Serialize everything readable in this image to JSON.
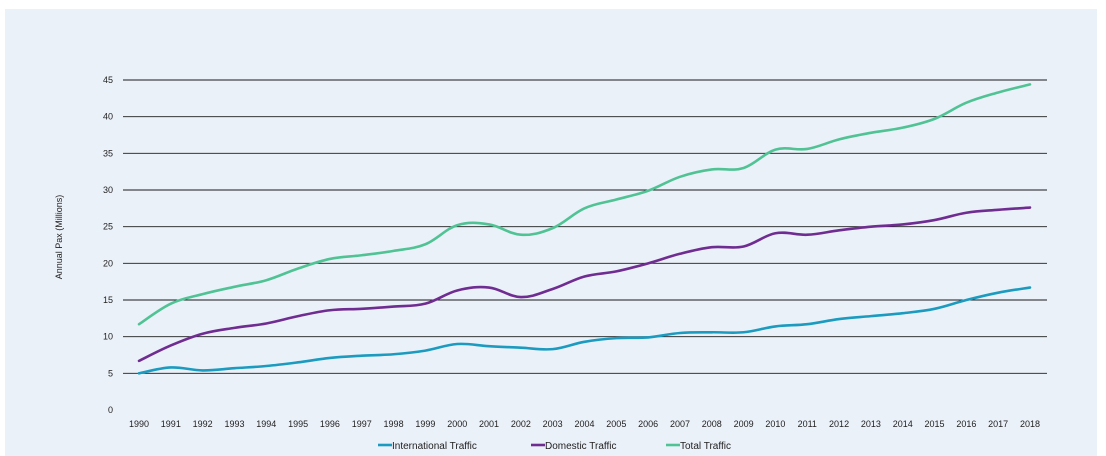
{
  "chart_data": {
    "type": "line",
    "title": "",
    "xlabel": "",
    "ylabel": "Annual Pax (Millions)",
    "ylim": [
      0,
      45
    ],
    "yticks": [
      0,
      5,
      10,
      15,
      20,
      25,
      30,
      35,
      40,
      45
    ],
    "grid": "horizontal",
    "legend_position": "bottom",
    "categories": [
      "1990",
      "1991",
      "1992",
      "1993",
      "1994",
      "1995",
      "1996",
      "1997",
      "1998",
      "1999",
      "2000",
      "2001",
      "2002",
      "2003",
      "2004",
      "2005",
      "2006",
      "2007",
      "2008",
      "2009",
      "2010",
      "2011",
      "2012",
      "2013",
      "2014",
      "2015",
      "2016",
      "2017",
      "2018"
    ],
    "series": [
      {
        "name": "International Traffic",
        "color": "#1b9bbf",
        "values": [
          5.0,
          5.8,
          5.4,
          5.7,
          6.0,
          6.5,
          7.1,
          7.4,
          7.6,
          8.1,
          9.0,
          8.7,
          8.5,
          8.3,
          9.3,
          9.8,
          9.9,
          10.5,
          10.6,
          10.6,
          11.4,
          11.7,
          12.4,
          12.8,
          13.2,
          13.8,
          15.0,
          16.0,
          16.7
        ]
      },
      {
        "name": "Domestic Traffic",
        "color": "#6f2c91",
        "values": [
          6.7,
          8.8,
          10.4,
          11.2,
          11.8,
          12.8,
          13.6,
          13.8,
          14.1,
          14.5,
          16.3,
          16.7,
          15.4,
          16.5,
          18.2,
          18.9,
          20.0,
          21.3,
          22.2,
          22.3,
          24.1,
          23.9,
          24.5,
          25.0,
          25.3,
          25.9,
          26.9,
          27.3,
          27.6
        ]
      },
      {
        "name": "Total Traffic",
        "color": "#50c395",
        "values": [
          11.7,
          14.5,
          15.8,
          16.8,
          17.7,
          19.3,
          20.6,
          21.1,
          21.7,
          22.6,
          25.2,
          25.3,
          23.9,
          24.8,
          27.5,
          28.7,
          29.9,
          31.8,
          32.8,
          33.0,
          35.5,
          35.6,
          36.9,
          37.8,
          38.5,
          39.7,
          41.9,
          43.3,
          44.4
        ]
      }
    ]
  }
}
